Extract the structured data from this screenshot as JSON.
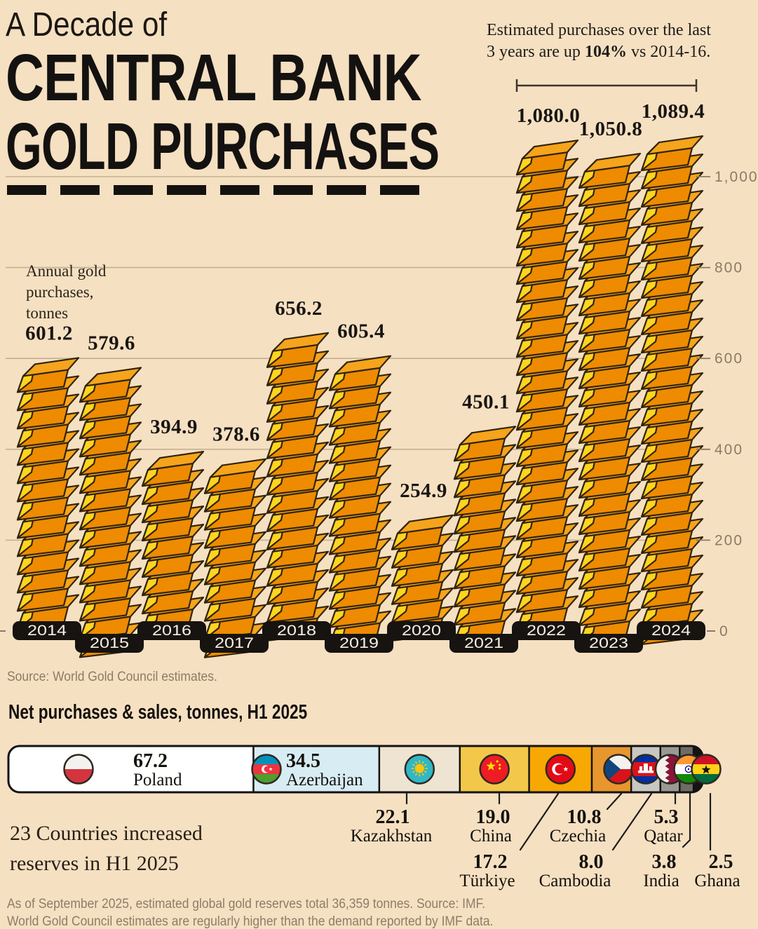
{
  "header": {
    "title_line1": "A Decade of",
    "title_line2": "CENTRAL BANK",
    "title_line3": "GOLD PURCHASES",
    "annotation": {
      "line1": "Estimated purchases over the last",
      "line2_pre": "3 years are up ",
      "line2_bold": "104%",
      "line2_post": " vs 2014-16."
    }
  },
  "source": "Source: World Gold Council estimates.",
  "bottom": {
    "heading": "Net purchases & sales, tonnes, H1 2025",
    "note_line1": "23 Countries increased",
    "note_line2": "reserves in H1 2025"
  },
  "footer": {
    "line1": "As of September 2025, estimated global gold reserves total 36,359 tonnes. Source: IMF.",
    "line2": "World Gold Council estimates are regularly higher than the demand reported by IMF data."
  },
  "chart_data": [
    {
      "type": "bar",
      "title": "Annual gold purchases, tonnes",
      "axis_label_lines": [
        "Annual gold",
        "purchases,",
        "tonnes"
      ],
      "categories": [
        "2014",
        "2015",
        "2016",
        "2017",
        "2018",
        "2019",
        "2020",
        "2021",
        "2022",
        "2023",
        "2024"
      ],
      "values": [
        601.2,
        579.6,
        394.9,
        378.6,
        656.2,
        605.4,
        254.9,
        450.1,
        1080.0,
        1050.8,
        1089.4
      ],
      "value_labels": [
        "601.2",
        "579.6",
        "394.9",
        "378.6",
        "656.2",
        "605.4",
        "254.9",
        "450.1",
        "1,080.0",
        "1,050.8",
        "1,089.4"
      ],
      "ylim": [
        0,
        1100
      ],
      "y_ticks": [
        0,
        200,
        400,
        600,
        800,
        1000
      ],
      "y_tick_labels": [
        "0",
        "200",
        "400",
        "600",
        "800",
        "1,000"
      ],
      "grid": true,
      "axis_side": "right",
      "bracket_span": [
        "2022",
        "2024"
      ],
      "colors": {
        "ingot_cap": "#ffd41f",
        "ingot_top": "#f6a41c",
        "ingot_front": "#ee8b01",
        "outline": "#30240f",
        "grid": "#c4b091",
        "axis_text": "#8b7b63",
        "pill_bg": "#161310",
        "value_text": "#181512",
        "bracket": "#3b352c"
      }
    },
    {
      "type": "bar",
      "subtype": "stacked-horizontal",
      "title": "Net purchases & sales, tonnes, H1 2025",
      "categories": [
        "Poland",
        "Azerbaijan",
        "Kazakhstan",
        "China",
        "Türkiye",
        "Czechia",
        "Cambodia",
        "Qatar",
        "India",
        "Ghana"
      ],
      "flags": [
        "poland",
        "azerbaijan",
        "kazakhstan",
        "china",
        "turkiye",
        "czechia",
        "cambodia",
        "qatar",
        "india",
        "ghana"
      ],
      "values": [
        67.2,
        34.5,
        22.1,
        19.0,
        17.2,
        10.8,
        8.0,
        5.3,
        3.8,
        2.5
      ],
      "value_labels": [
        "67.2",
        "34.5",
        "22.1",
        "19.0",
        "17.2",
        "10.8",
        "8.0",
        "5.3",
        "3.8",
        "2.5"
      ],
      "segment_colors": [
        "#ffffff",
        "#d8ecf3",
        "#efe4d2",
        "#f3c84a",
        "#f7a803",
        "#e8962e",
        "#c9c7c3",
        "#9b9892",
        "#6f6c66",
        "#161412"
      ],
      "outline": "#131313"
    }
  ]
}
